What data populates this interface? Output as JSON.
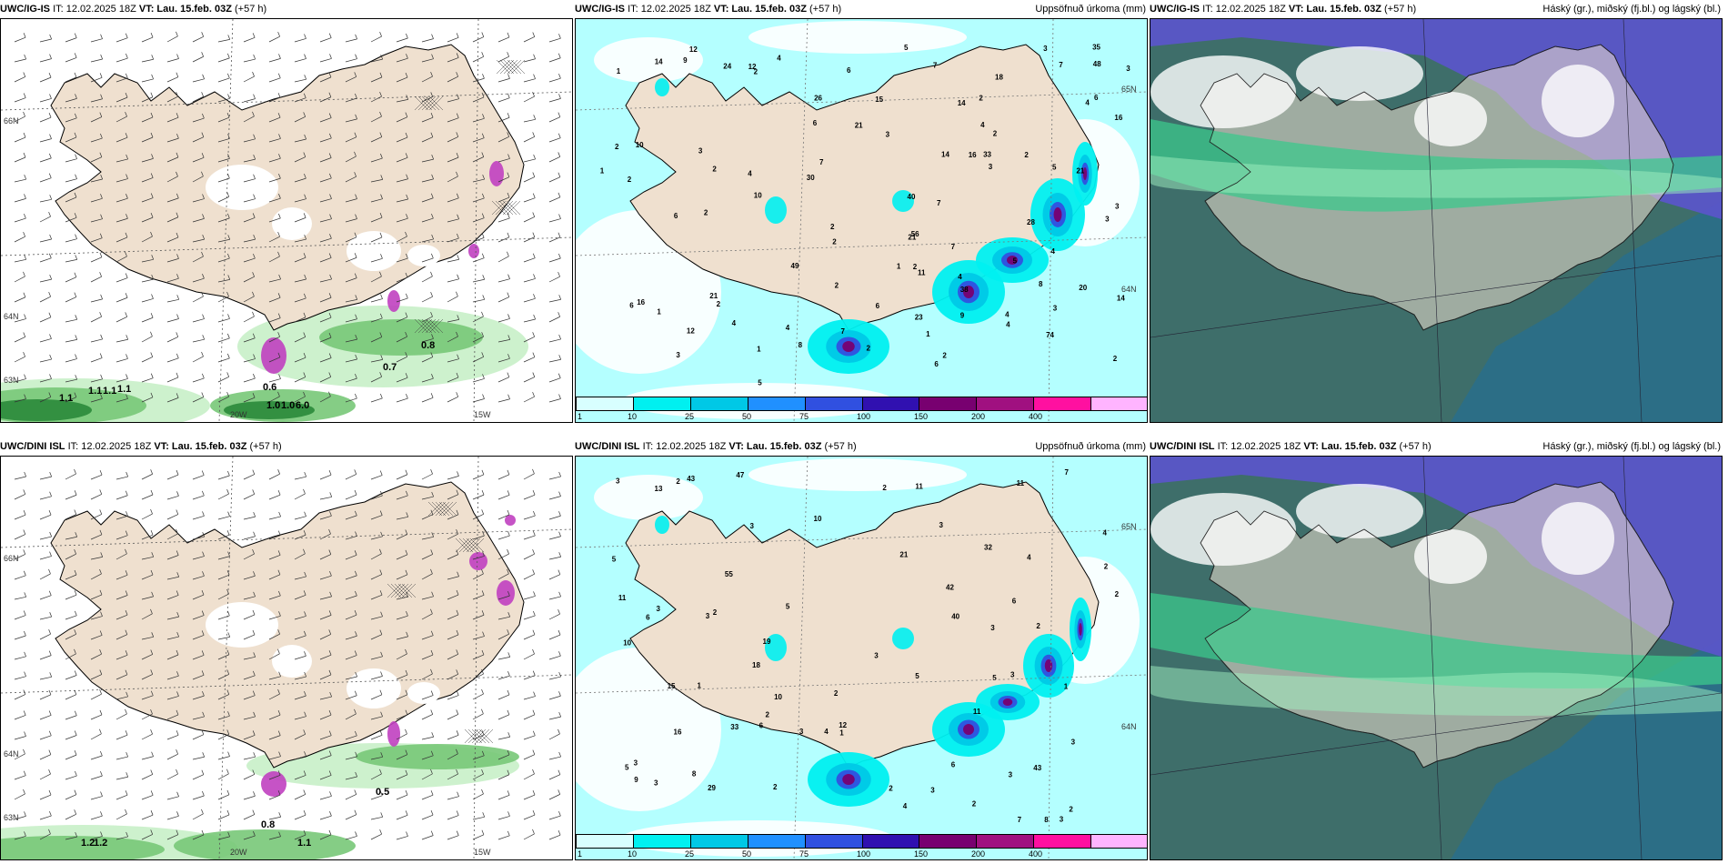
{
  "rows": [
    {
      "model": "UWC/IG-IS",
      "it": "IT: 12.02.2025 18Z",
      "vt_label": "VT:",
      "vt": "Lau. 15.feb. 03Z",
      "lead": "(+57 h)",
      "panels": {
        "wind": {
          "right": ""
        },
        "precip": {
          "right": "Uppsöfnuð úrkoma (mm)"
        },
        "cloud": {
          "right": "Háský (gr.), miðský (fj.bl.) og lágský (bl.)"
        }
      },
      "wind_labels": [
        "0.8",
        "0.7",
        "0.6",
        "1.0",
        "1.0",
        "6.0",
        "1.1",
        "1.1",
        "1.1",
        "1.1"
      ],
      "lat_labels": [
        "66N",
        "64N",
        "63N"
      ],
      "lon_labels": [
        "20W",
        "15W"
      ],
      "lat_right": [
        "65N",
        "64N"
      ],
      "precip_values": [
        "2",
        "2",
        "2",
        "3",
        "2",
        "1",
        "3",
        "10",
        "2",
        "4",
        "1",
        "2",
        "2",
        "2",
        "3",
        "3",
        "2",
        "7",
        "5",
        "5",
        "4",
        "11",
        "1",
        "4",
        "7",
        "2",
        "2",
        "2",
        "2",
        "26",
        "38",
        "35",
        "2",
        "4",
        "4",
        "7",
        "5",
        "10",
        "3",
        "4",
        "6",
        "40",
        "3",
        "3",
        "7",
        "4",
        "1",
        "2",
        "56",
        "48",
        "49",
        "3",
        "4",
        "4",
        "1",
        "2",
        "74",
        "7",
        "5",
        "6",
        "1",
        "6",
        "33",
        "6",
        "12",
        "3",
        "9",
        "23",
        "9",
        "30",
        "21",
        "14",
        "12",
        "15",
        "8",
        "8",
        "28",
        "21",
        "16",
        "16",
        "21",
        "14",
        "14",
        "6",
        "6",
        "6",
        "7",
        "4",
        "12",
        "24",
        "16",
        "18",
        "21",
        "20",
        "14"
      ]
    },
    {
      "model": "UWC/DINI ISL",
      "it": "IT: 12.02.2025 18Z",
      "vt_label": "VT:",
      "vt": "Lau. 15.feb. 03Z",
      "lead": "(+57 h)",
      "panels": {
        "wind": {
          "right": ""
        },
        "precip": {
          "right": "Uppsöfnuð úrkoma (mm)"
        },
        "cloud": {
          "right": "Háský (gr.), miðský (fj.bl.) og lágský (bl.)"
        }
      },
      "wind_labels": [
        "0.5",
        "0.8",
        "1.2",
        "1.2",
        "1.1"
      ],
      "lat_labels": [
        "66N",
        "64N",
        "63N"
      ],
      "lon_labels": [
        "20W",
        "15W"
      ],
      "lat_right": [
        "65N",
        "64N"
      ],
      "precip_values": [
        "2",
        "3",
        "2",
        "3",
        "3",
        "3",
        "4",
        "18",
        "6",
        "3",
        "2",
        "2",
        "3",
        "7",
        "19",
        "6",
        "3",
        "2",
        "4",
        "5",
        "8",
        "2",
        "3",
        "33",
        "43",
        "40",
        "2",
        "3",
        "4",
        "5",
        "2",
        "3",
        "3",
        "3",
        "32",
        "11",
        "3",
        "43",
        "1",
        "2",
        "10",
        "2",
        "1",
        "2",
        "1",
        "9",
        "12",
        "55",
        "47",
        "3",
        "4",
        "6",
        "5",
        "11",
        "2",
        "42",
        "29",
        "13",
        "16",
        "8",
        "11",
        "10",
        "5",
        "5",
        "3",
        "6",
        "7",
        "21",
        "11",
        "10",
        "15"
      ]
    }
  ],
  "scale": {
    "labels": [
      "1",
      "10",
      "25",
      "50",
      "75",
      "100",
      "150",
      "200",
      "400"
    ],
    "colors": [
      "#d8ffff",
      "#00f0f0",
      "#00c8e6",
      "#2090ff",
      "#3050e0",
      "#3010b0",
      "#780070",
      "#a01080",
      "#ff10a0",
      "#ffb4ff"
    ]
  },
  "colors": {
    "land": "#efe0cf",
    "sea_precip": "#b4ffff",
    "wind_green_light": "#c8f0c8",
    "wind_green_mid": "#78c878",
    "wind_green_dark": "#2a8a3a",
    "cloud_purple": "#5a55c8",
    "cloud_green": "#3cc88c",
    "cloud_dark": "#3e6e6a",
    "cloud_teal": "#2a6e8a"
  }
}
